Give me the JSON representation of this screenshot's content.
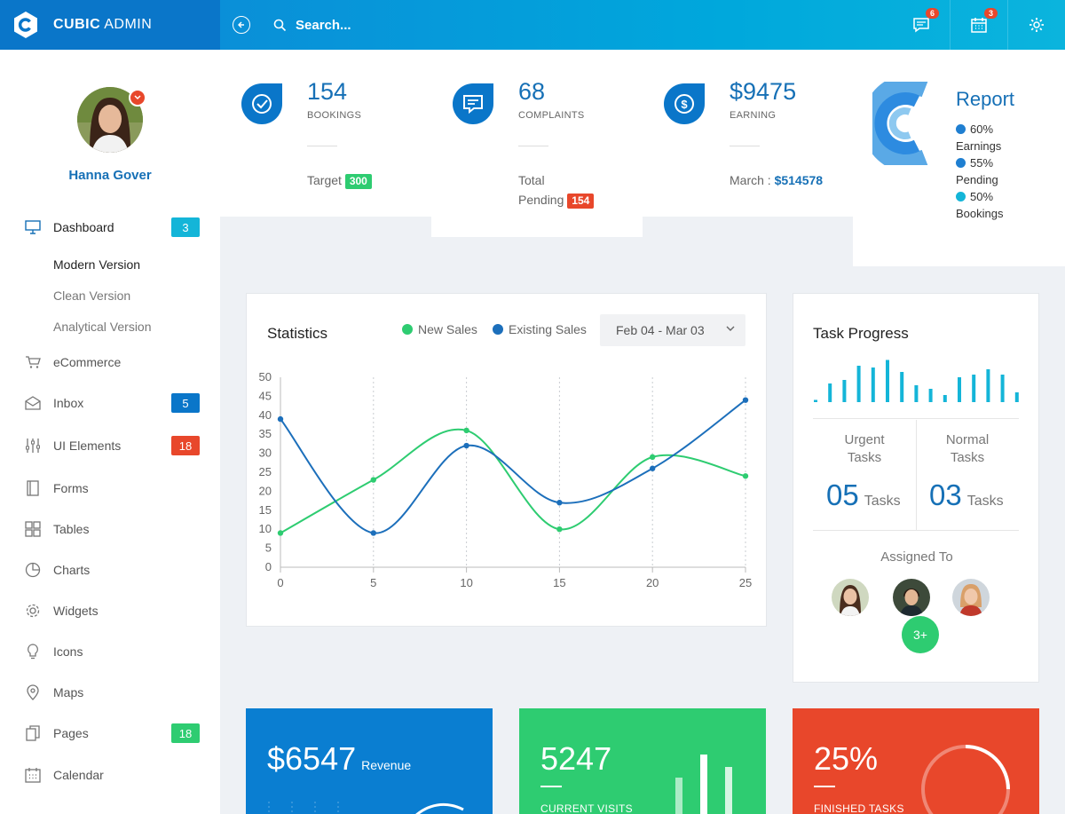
{
  "brand": {
    "bold": "CUBIC",
    "light": " ADMIN"
  },
  "search": {
    "placeholder": "Search..."
  },
  "notifications": {
    "messages_count": "6",
    "calendar_count": "3"
  },
  "user": {
    "name": "Hanna Gover"
  },
  "nav": {
    "dashboard": {
      "label": "Dashboard",
      "badge": "3"
    },
    "submenu": [
      "Modern Version",
      "Clean Version",
      "Analytical Version"
    ],
    "ecommerce": "eCommerce",
    "inbox": {
      "label": "Inbox",
      "badge": "5"
    },
    "ui_elements": {
      "label": "UI Elements",
      "badge": "18"
    },
    "forms": "Forms",
    "tables": "Tables",
    "charts": "Charts",
    "widgets": "Widgets",
    "icons": "Icons",
    "maps": "Maps",
    "pages": {
      "label": "Pages",
      "badge": "18"
    },
    "calendar": "Calendar"
  },
  "stats": {
    "bookings": {
      "value": "154",
      "label": "BOOKINGS",
      "foot": "Target",
      "pill": "300"
    },
    "complaints": {
      "value": "68",
      "label": "COMPLAINTS",
      "foot1": "Total",
      "foot2": "Pending",
      "pill": "154"
    },
    "earning": {
      "value": "$9475",
      "label": "EARNING",
      "foot": "March : ",
      "amount": "$514578"
    }
  },
  "report": {
    "title": "Report",
    "items": [
      {
        "pct": "60%",
        "label": "Earnings",
        "color": "#1f7fd1"
      },
      {
        "pct": "55%",
        "label": "Pending",
        "color": "#1f7fd1"
      },
      {
        "pct": "50%",
        "label": "Bookings",
        "color": "#14b5d8"
      }
    ]
  },
  "statistics": {
    "title": "Statistics",
    "legend_new": "New Sales",
    "legend_existing": "Existing Sales",
    "date_range": "Feb 04 - Mar 03"
  },
  "chart_data": {
    "type": "line",
    "x": [
      0,
      5,
      10,
      15,
      20,
      25
    ],
    "series": [
      {
        "name": "New Sales",
        "color": "#2ecc71",
        "values": [
          9,
          23,
          36,
          10,
          29,
          24
        ]
      },
      {
        "name": "Existing Sales",
        "color": "#1c6fbb",
        "values": [
          39,
          9,
          32,
          17,
          26,
          44
        ]
      }
    ],
    "xlim": [
      0,
      25
    ],
    "ylim": [
      0,
      50
    ],
    "yticks": [
      0,
      5,
      10,
      15,
      20,
      25,
      30,
      35,
      40,
      45,
      50
    ],
    "grid": "vertical-dashed"
  },
  "task_progress": {
    "title": "Task Progress",
    "spark": [
      0.05,
      0.42,
      0.5,
      0.82,
      0.78,
      0.95,
      0.68,
      0.38,
      0.3,
      0.16,
      0.56,
      0.62,
      0.74,
      0.62,
      0.22
    ],
    "urgent_label_1": "Urgent",
    "urgent_label_2": "Tasks",
    "urgent_value": "05",
    "normal_label_1": "Normal",
    "normal_label_2": "Tasks",
    "normal_value": "03",
    "unit": "Tasks",
    "assigned": "Assigned To",
    "more": "3+"
  },
  "tiles": {
    "revenue": {
      "value": "$6547",
      "sub": "Revenue",
      "color": "#0a7ed1"
    },
    "visits": {
      "value": "5247",
      "caption": "CURRENT VISITS",
      "color": "#2ecc71"
    },
    "tasks": {
      "value": "25%",
      "caption": "FINISHED TASKS",
      "color": "#e8472b"
    }
  }
}
